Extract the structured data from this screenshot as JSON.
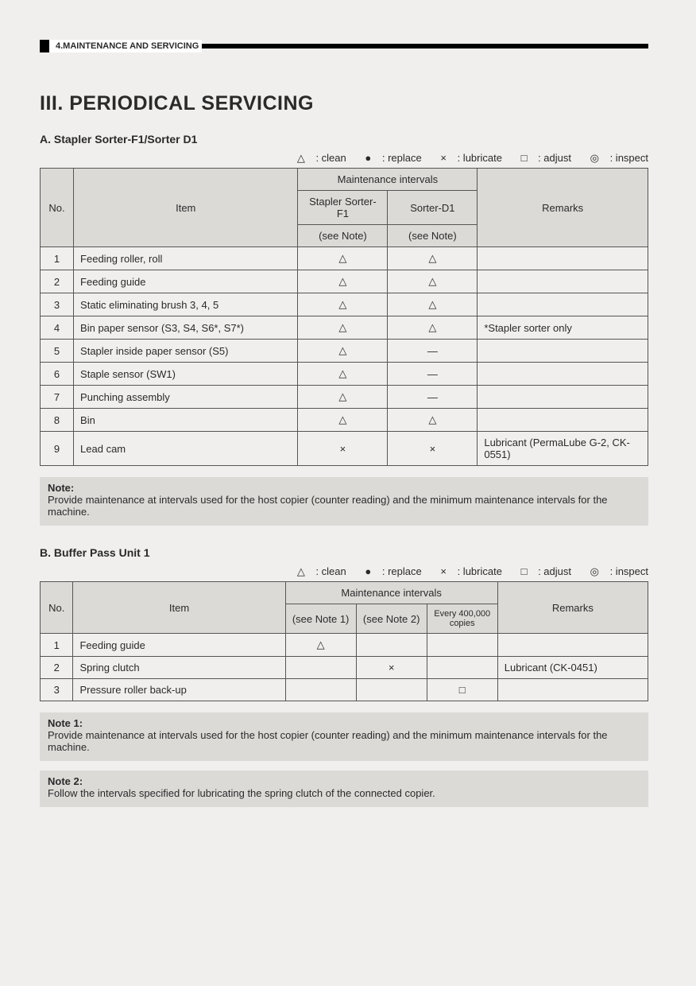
{
  "header": {
    "chapter": "4.MAINTENANCE AND SERVICING"
  },
  "title": "III.  PERIODICAL SERVICING",
  "legend": {
    "clean": {
      "sym": "△",
      "label": ": clean"
    },
    "replace": {
      "sym": "●",
      "label": ": replace"
    },
    "lubricate": {
      "sym": "×",
      "label": ": lubricate"
    },
    "adjust": {
      "sym": "□",
      "label": ": adjust"
    },
    "inspect": {
      "sym": "◎",
      "label": ": inspect"
    }
  },
  "sectionA": {
    "heading": "A.  Stapler Sorter-F1/Sorter D1",
    "headers": {
      "no": "No.",
      "item": "Item",
      "mi": "Maintenance intervals",
      "c1a": "Stapler Sorter-F1",
      "c1b": "(see Note)",
      "c2a": "Sorter-D1",
      "c2b": "(see Note)",
      "rem": "Remarks"
    },
    "rows": [
      {
        "no": "1",
        "item": "Feeding roller, roll",
        "c1": "△",
        "c2": "△",
        "rem": ""
      },
      {
        "no": "2",
        "item": "Feeding guide",
        "c1": "△",
        "c2": "△",
        "rem": ""
      },
      {
        "no": "3",
        "item": "Static eliminating brush 3, 4, 5",
        "c1": "△",
        "c2": "△",
        "rem": ""
      },
      {
        "no": "4",
        "item": "Bin paper sensor (S3, S4, S6*, S7*)",
        "c1": "△",
        "c2": "△",
        "rem": "*Stapler sorter only"
      },
      {
        "no": "5",
        "item": "Stapler inside paper sensor (S5)",
        "c1": "△",
        "c2": "—",
        "rem": ""
      },
      {
        "no": "6",
        "item": "Staple sensor (SW1)",
        "c1": "△",
        "c2": "—",
        "rem": ""
      },
      {
        "no": "7",
        "item": "Punching assembly",
        "c1": "△",
        "c2": "—",
        "rem": ""
      },
      {
        "no": "8",
        "item": "Bin",
        "c1": "△",
        "c2": "△",
        "rem": ""
      },
      {
        "no": "9",
        "item": "Lead cam",
        "c1": "×",
        "c2": "×",
        "rem": "Lubricant (PermaLube G-2, CK-0551)"
      }
    ],
    "note": {
      "label": "Note:",
      "text": "Provide maintenance at intervals used for the host copier (counter reading) and the minimum maintenance intervals for the machine."
    }
  },
  "sectionB": {
    "heading": "B.  Buffer Pass Unit 1",
    "headers": {
      "no": "No.",
      "item": "Item",
      "mi": "Maintenance intervals",
      "c1": "(see Note 1)",
      "c2": "(see Note 2)",
      "c3": "Every 400,000 copies",
      "rem": "Remarks"
    },
    "rows": [
      {
        "no": "1",
        "item": "Feeding guide",
        "c1": "△",
        "c2": "",
        "c3": "",
        "rem": ""
      },
      {
        "no": "2",
        "item": "Spring clutch",
        "c1": "",
        "c2": "×",
        "c3": "",
        "rem": "Lubricant (CK-0451)"
      },
      {
        "no": "3",
        "item": "Pressure roller back-up",
        "c1": "",
        "c2": "",
        "c3": "□",
        "rem": ""
      }
    ],
    "note1": {
      "label": "Note 1:",
      "text": "Provide maintenance at intervals used for the host copier (counter reading) and the minimum maintenance intervals for the machine."
    },
    "note2": {
      "label": "Note 2:",
      "text": "Follow the intervals specified for lubricating the spring clutch of the connected copier."
    }
  }
}
